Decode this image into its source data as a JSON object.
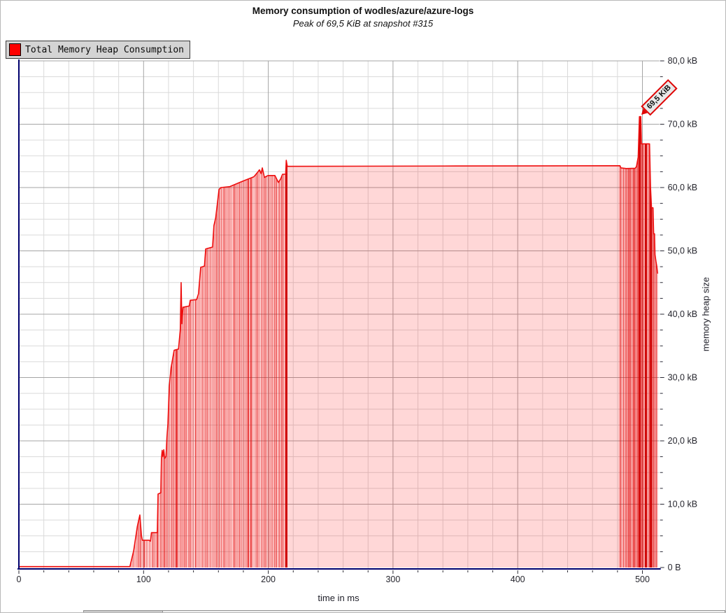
{
  "header": {
    "title": "Memory consumption of wodles/azure/azure-logs",
    "subtitle": "Peak of 69,5 KiB at snapshot #315"
  },
  "legend": {
    "label": "Total Memory Heap Consumption",
    "swatch_color": "#ff0000"
  },
  "annotation": {
    "text": "69,5 KiB",
    "at_time_ms": 498,
    "at_kb": 71.2
  },
  "colors": {
    "series_line": "#ee0e0e",
    "series_fill": "rgba(255,0,0,0.155)",
    "snapshot_line": "rgba(225,5,5,0.45)",
    "emphasis_line": "rgba(205,0,0,0.95)",
    "grid_minor": "#dadada",
    "grid_major": "#a5a5a5",
    "axis": "#00006e",
    "tick_text": "#26262e",
    "legend_bg": "#d4d4d4",
    "callout_border": "#e00505",
    "callout_bg": "#e9e9e9"
  },
  "chart_data": {
    "type": "area",
    "title": "Memory consumption of wodles/azure/azure-logs",
    "subtitle": "Peak of 69,5 KiB at snapshot #315",
    "xlabel": "time in ms",
    "ylabel": "memory heap size",
    "xlim": [
      0,
      513
    ],
    "ylim": [
      0,
      80
    ],
    "x_major_ticks": [
      0,
      100,
      200,
      300,
      400,
      500
    ],
    "x_minor_step_ms": 20,
    "y_major_ticks": [
      0,
      10,
      20,
      30,
      40,
      50,
      60,
      70,
      80
    ],
    "y_tick_labels": [
      "0 B",
      "10,0 kB",
      "20,0 kB",
      "30,0 kB",
      "40,0 kB",
      "50,0 kB",
      "60,0 kB",
      "70,0 kB",
      "80,0 kB"
    ],
    "y_minor_step_kb": 2.5,
    "grid": true,
    "legend_position": "top-left",
    "series": [
      {
        "name": "Total Memory Heap Consumption",
        "color": "#ff0000",
        "peak_kib": "69,5 KiB",
        "peak_snapshot": 315,
        "points": [
          [
            0,
            0.15
          ],
          [
            89,
            0.15
          ],
          [
            92,
            2.6
          ],
          [
            95,
            6.5
          ],
          [
            97,
            8.3
          ],
          [
            98.3,
            5.0
          ],
          [
            99,
            4.3
          ],
          [
            104.5,
            4.3
          ],
          [
            105.5,
            4.15
          ],
          [
            106.3,
            5.5
          ],
          [
            111,
            5.5
          ],
          [
            111.6,
            11.6
          ],
          [
            113.8,
            11.8
          ],
          [
            114.3,
            17.2
          ],
          [
            114.9,
            18.5
          ],
          [
            115.5,
            17.5
          ],
          [
            116.2,
            18.6
          ],
          [
            116.9,
            17.2
          ],
          [
            118,
            17.6
          ],
          [
            118.7,
            20.5
          ],
          [
            119.5,
            22.7
          ],
          [
            120.6,
            28.6
          ],
          [
            122,
            31.5
          ],
          [
            124.5,
            34.3
          ],
          [
            128,
            34.5
          ],
          [
            129.4,
            37.5
          ],
          [
            130.1,
            45.0
          ],
          [
            130.7,
            38.5
          ],
          [
            131.6,
            41.1
          ],
          [
            136.6,
            41.3
          ],
          [
            137.4,
            42.2
          ],
          [
            142.5,
            42.3
          ],
          [
            144,
            43.2
          ],
          [
            145.8,
            47.4
          ],
          [
            148.8,
            47.6
          ],
          [
            149.8,
            50.3
          ],
          [
            155.3,
            50.6
          ],
          [
            156.4,
            54.0
          ],
          [
            157.8,
            55.2
          ],
          [
            160.5,
            59.7
          ],
          [
            162,
            60.0
          ],
          [
            169.2,
            60.15
          ],
          [
            177,
            60.8
          ],
          [
            182,
            61.2
          ],
          [
            188.4,
            61.7
          ],
          [
            191,
            62.3
          ],
          [
            192.9,
            62.8
          ],
          [
            194.2,
            62.2
          ],
          [
            195.2,
            63.1
          ],
          [
            196.9,
            61.6
          ],
          [
            199.8,
            61.9
          ],
          [
            205.3,
            61.9
          ],
          [
            208.1,
            60.8
          ],
          [
            210,
            61.4
          ],
          [
            211.4,
            62.1
          ],
          [
            213.9,
            62.1
          ],
          [
            214.4,
            64.3
          ],
          [
            215.2,
            63.35
          ],
          [
            350,
            63.4
          ],
          [
            482,
            63.45
          ],
          [
            482.8,
            63.1
          ],
          [
            487,
            63.0
          ],
          [
            494.2,
            63.05
          ],
          [
            495.2,
            63.3
          ],
          [
            496.6,
            64.8
          ],
          [
            497.6,
            71.2
          ],
          [
            498.7,
            71.2
          ],
          [
            499.2,
            66.9
          ],
          [
            505.7,
            66.9
          ],
          [
            506.5,
            60.0
          ],
          [
            507.3,
            56.8
          ],
          [
            508.5,
            56.8
          ],
          [
            509,
            52.7
          ],
          [
            509.7,
            52.7
          ],
          [
            510.1,
            49.4
          ],
          [
            510.9,
            48.3
          ],
          [
            511.5,
            47.6
          ],
          [
            512.2,
            46.4
          ]
        ]
      }
    ],
    "snapshot_line_regions": [
      {
        "t0": 89.3,
        "t1": 215.2,
        "count": 112
      },
      {
        "t0": 481.0,
        "t1": 512.4,
        "count": 46
      }
    ],
    "emphasis_snapshots_ms": [
      214.5,
      497.9,
      502.8,
      506.8
    ]
  }
}
